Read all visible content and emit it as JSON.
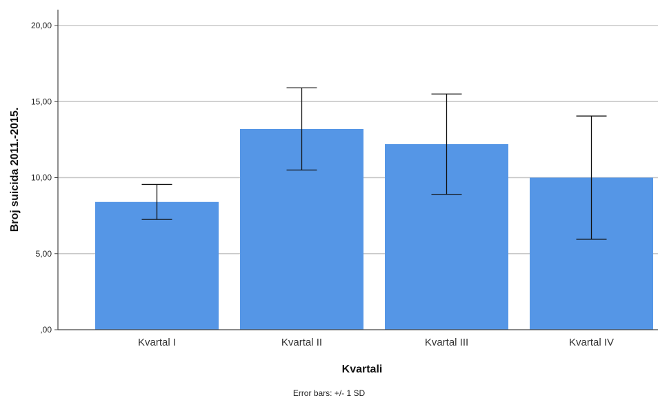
{
  "chart_data": {
    "type": "bar",
    "categories": [
      "Kvartal I",
      "Kvartal II",
      "Kvartal III",
      "Kvartal IV"
    ],
    "values": [
      8.4,
      13.2,
      12.2,
      10.0
    ],
    "error_sd": [
      1.15,
      2.7,
      3.3,
      4.05
    ],
    "xlabel": "Kvartali",
    "ylabel": "Broj suicida 2011.-2015.",
    "ylim": [
      0,
      20
    ],
    "yticks": [
      0,
      5,
      10,
      15,
      20
    ],
    "ytick_labels": [
      ",00",
      "5,00",
      "10,00",
      "15,00",
      "20,00"
    ],
    "grid": true,
    "bar_color": "#5596E6",
    "footnote": "Error bars: +/- 1 SD"
  }
}
